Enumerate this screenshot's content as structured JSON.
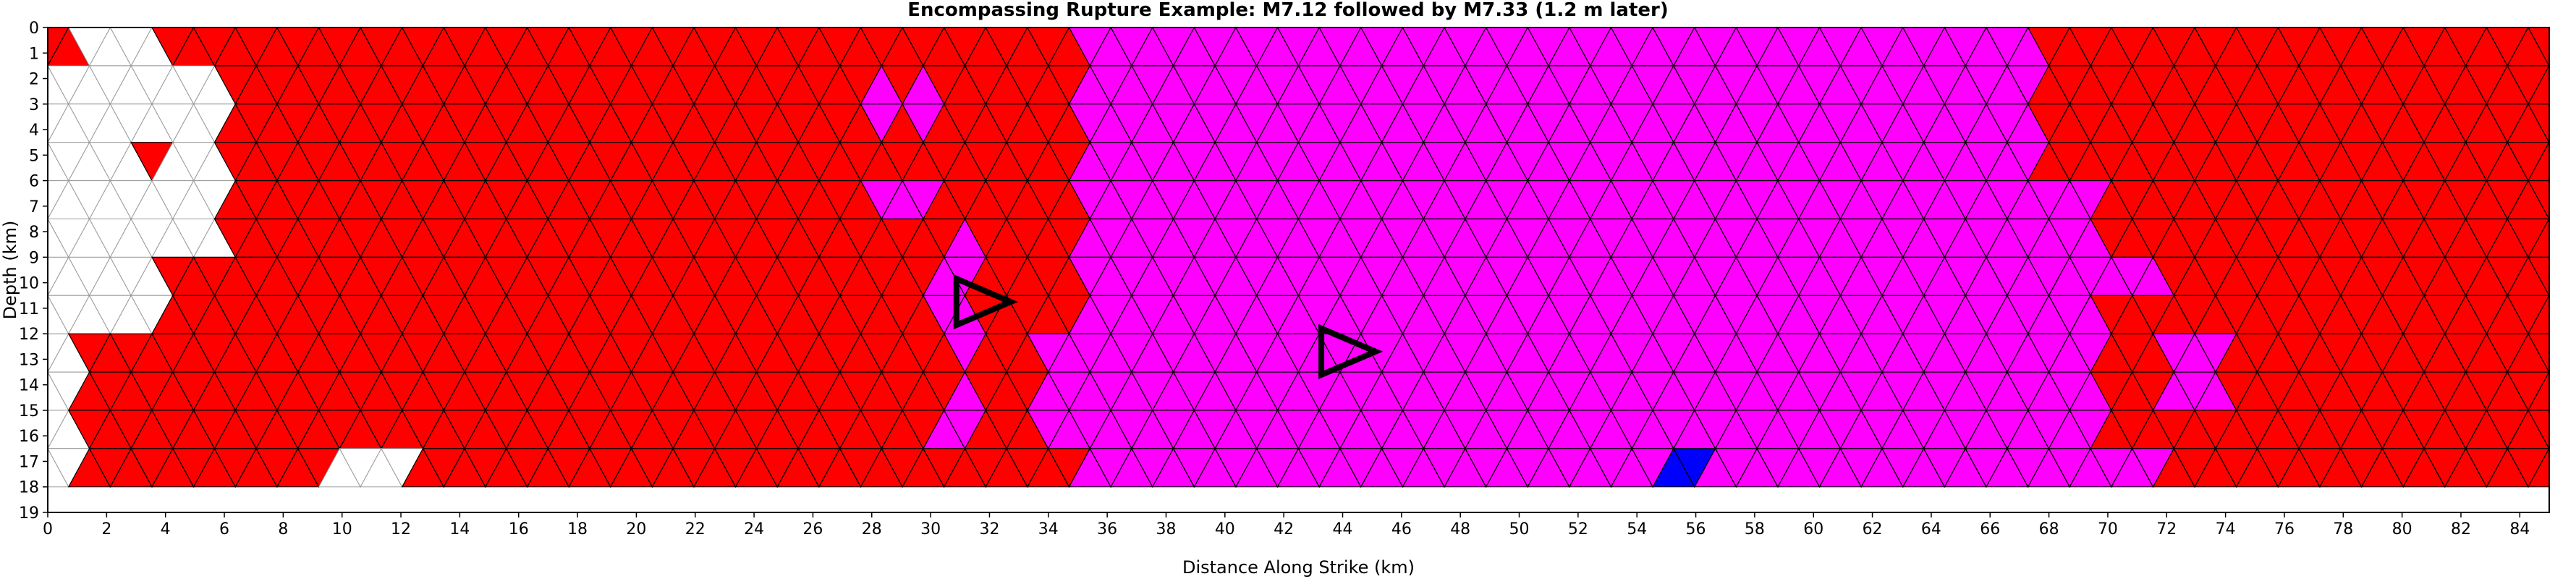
{
  "chart_data": {
    "type": "heatmap",
    "title": "Encompassing Rupture Example: M7.12 followed by M7.33 (1.2 m later)",
    "xlabel": "Distance Along Strike (km)",
    "ylabel": "Depth (km)",
    "xlim": [
      0,
      85
    ],
    "ylim": [
      19,
      0
    ],
    "x_ticks": [
      0,
      2,
      4,
      6,
      8,
      10,
      12,
      14,
      16,
      18,
      20,
      22,
      24,
      26,
      28,
      30,
      32,
      34,
      36,
      38,
      40,
      42,
      44,
      46,
      48,
      50,
      52,
      54,
      56,
      58,
      60,
      62,
      64,
      66,
      68,
      70,
      72,
      74,
      76,
      78,
      80,
      82,
      84
    ],
    "y_ticks": [
      0,
      1,
      2,
      3,
      4,
      5,
      6,
      7,
      8,
      9,
      10,
      11,
      12,
      13,
      14,
      15,
      16,
      17,
      18,
      19
    ],
    "mesh": {
      "element": "triangle",
      "row_height_km": 1.5,
      "half_base_km": 0.7083,
      "x_start_km": 0,
      "x_end_km": 85,
      "depth_top_km": 0,
      "depth_bottom_km": 18
    },
    "series": [
      {
        "color": "#ff0000",
        "regions": [
          {
            "x": [
              0,
              35.2
            ],
            "depth": [
              0,
              18
            ]
          },
          {
            "x": [
              67.8,
              85
            ],
            "depth": [
              0,
              6
            ]
          },
          {
            "x": [
              70,
              85
            ],
            "depth": [
              6,
              9
            ]
          },
          {
            "x": [
              72.2,
              85
            ],
            "depth": [
              9,
              10.5
            ]
          },
          {
            "x": [
              70.5,
              85
            ],
            "depth": [
              10.5,
              12
            ]
          },
          {
            "x": [
              74.2,
              85
            ],
            "depth": [
              12,
              15
            ]
          },
          {
            "x": [
              72,
              85
            ],
            "depth": [
              15,
              18
            ]
          },
          {
            "x": [
              47.6,
              54
            ],
            "depth": [
              16.5,
              18
            ]
          }
        ]
      },
      {
        "color": "#ff00ff",
        "regions": [
          {
            "x": [
              35.2,
              67.8
            ],
            "depth": [
              0,
              18
            ]
          },
          {
            "x": [
              67.8,
              70
            ],
            "depth": [
              6,
              18
            ]
          },
          {
            "x": [
              70,
              72.2
            ],
            "depth": [
              9,
              10.5
            ]
          },
          {
            "x": [
              72.2,
              74.2
            ],
            "depth": [
              12,
              15
            ]
          },
          {
            "x": [
              28.3,
              30
            ],
            "depth": [
              2.25,
              3.75
            ]
          },
          {
            "x": [
              28.3,
              30
            ],
            "depth": [
              6,
              7.5
            ]
          },
          {
            "x": [
              30,
              31.7
            ],
            "depth": [
              8.25,
              12.75
            ]
          },
          {
            "x": [
              30,
              31.7
            ],
            "depth": [
              14.5,
              16
            ]
          },
          {
            "x": [
              33.6,
              35.2
            ],
            "depth": [
              12,
              16
            ]
          },
          {
            "x": [
              68.5,
              72
            ],
            "depth": [
              16.5,
              18
            ]
          }
        ]
      },
      {
        "color": "#0000ff",
        "regions": [
          {
            "x": [
              54.9,
              56.6
            ],
            "depth": [
              16.5,
              18
            ]
          }
        ]
      },
      {
        "color": "#ffffff",
        "regions": [
          {
            "x": [
              1.4,
              4.2
            ],
            "depth": [
              0,
              2
            ]
          },
          {
            "x": [
              1.4,
              5.7
            ],
            "depth": [
              2,
              9
            ]
          },
          {
            "x": [
              1.4,
              4.2
            ],
            "depth": [
              9,
              12
            ]
          },
          {
            "x": [
              0,
              1.4
            ],
            "depth": [
              1.5,
              18
            ]
          },
          {
            "x": [
              9.9,
              12.7
            ],
            "depth": [
              16.5,
              18
            ]
          }
        ]
      },
      {
        "color": "#ff0000",
        "regions": [
          {
            "x": [
              2.9,
              4.2
            ],
            "depth": [
              4.5,
              6
            ]
          },
          {
            "x": [
              1.4,
              1.4
            ],
            "depth": [
              13.5,
              18
            ]
          }
        ]
      }
    ],
    "annotations": [
      {
        "type": "hypocenter-triangle",
        "x": 31.8,
        "depth": 10.75
      },
      {
        "type": "hypocenter-triangle",
        "x": 44.2,
        "depth": 12.7
      }
    ],
    "colors": {
      "primary": "#ff0000",
      "secondary": "#ff00ff",
      "tertiary": "#0000ff",
      "unruptured": "#ffffff",
      "mesh_line": "#000000"
    }
  }
}
